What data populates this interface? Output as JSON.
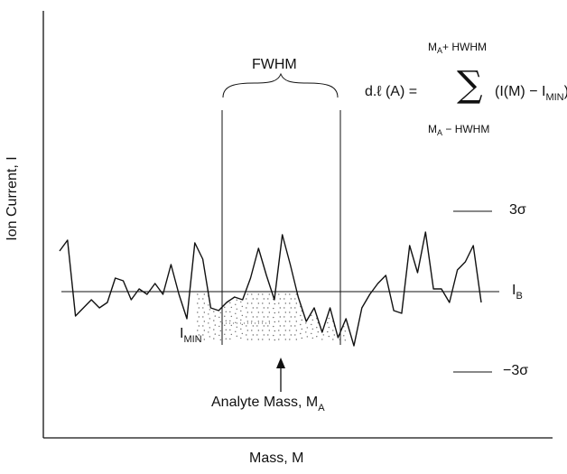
{
  "axes": {
    "x_label": "Mass, M",
    "y_label": "Ion Current, I"
  },
  "labels": {
    "fwhm": "FWHM",
    "sigma_plus": "3σ",
    "sigma_minus": "−3σ",
    "ib_main": "I",
    "ib_sub": "B",
    "imin_main": "I",
    "imin_sub": "MIN",
    "analyte_text": "Analyte Mass, M",
    "analyte_sub": "A"
  },
  "formula": {
    "lhs": "d.ℓ (A) =",
    "sum_symbol": "∑",
    "upper_main": "M",
    "upper_sub": "A",
    "upper_rest": "+ HWHM",
    "lower_main": "M",
    "lower_sub": "A",
    "lower_rest": " − HWHM",
    "body_main": "(I(M) − I",
    "body_sub": "MIN",
    "body_close": ")"
  },
  "chart_data": {
    "type": "line",
    "xlabel": "Mass, M",
    "ylabel": "Ion Current, I",
    "series": [
      {
        "values": [
          1.5,
          1.9,
          -0.9,
          -0.6,
          -0.3,
          -0.6,
          -0.4,
          0.5,
          0.4,
          -0.3,
          0.1,
          -0.1,
          0.3,
          -0.1,
          1.0,
          -0.1,
          -1.0,
          1.8,
          1.2,
          -0.6,
          -0.7,
          -0.4,
          -0.2,
          -0.3,
          0.5,
          1.6,
          0.6,
          -0.3,
          2.1,
          1.0,
          -0.2,
          -1.1,
          -0.6,
          -1.5,
          -0.6,
          -1.7,
          -1.0,
          -2.0,
          -0.6,
          -0.1,
          0.3,
          0.6,
          -0.7,
          -0.8,
          1.7,
          0.7,
          2.2,
          0.1,
          0.1,
          -0.4,
          0.8,
          1.1,
          1.7,
          -0.4
        ]
      }
    ],
    "baseline_IB": 0,
    "sigma_levels": [
      3,
      -3
    ],
    "fwhm_window_index": [
      17,
      36
    ],
    "imin": -1.0
  }
}
